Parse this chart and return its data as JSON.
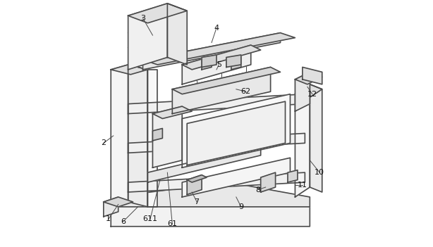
{
  "title": "",
  "background_color": "#ffffff",
  "line_color": "#4a4a4a",
  "line_width": 1.2,
  "figsize": [
    6.14,
    3.51
  ],
  "dpi": 100,
  "label_positions": {
    "1": [
      0.06,
      0.11,
      0.1,
      0.17
    ],
    "2": [
      0.04,
      0.42,
      0.08,
      0.45
    ],
    "3": [
      0.2,
      0.93,
      0.24,
      0.86
    ],
    "4": [
      0.5,
      0.89,
      0.48,
      0.83
    ],
    "5": [
      0.51,
      0.74,
      0.5,
      0.72
    ],
    "6": [
      0.12,
      0.1,
      0.18,
      0.16
    ],
    "61": [
      0.32,
      0.09,
      0.3,
      0.3
    ],
    "611": [
      0.23,
      0.11,
      0.27,
      0.27
    ],
    "62": [
      0.62,
      0.63,
      0.58,
      0.64
    ],
    "7": [
      0.42,
      0.18,
      0.4,
      0.22
    ],
    "8": [
      0.67,
      0.23,
      0.7,
      0.24
    ],
    "9": [
      0.6,
      0.16,
      0.58,
      0.2
    ],
    "10": [
      0.92,
      0.3,
      0.88,
      0.35
    ],
    "11": [
      0.85,
      0.25,
      0.82,
      0.25
    ],
    "12": [
      0.89,
      0.62,
      0.87,
      0.65
    ]
  }
}
